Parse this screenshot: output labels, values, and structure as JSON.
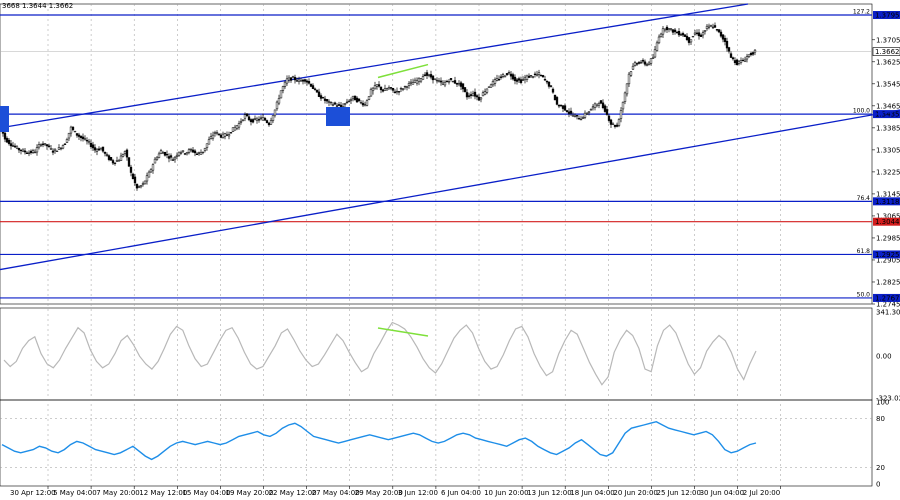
{
  "header": {
    "ohlc_text": "3668 1.3644 1.3662"
  },
  "colors": {
    "candle": "#000000",
    "channel": "#0a1fc8",
    "level": "#0a1fc8",
    "level_red": "#d21e1e",
    "divergence": "#7ee03a",
    "cci_line": "#b8b8b8",
    "rsi_line": "#1e8ee8",
    "grid": "#9a9a9a",
    "marker": "#1c4fd8"
  },
  "chart_data": [
    {
      "type": "candlestick",
      "series_name": "",
      "price_scale": {
        "ticks": [
          "1.3705",
          "1.3625",
          "1.3545",
          "1.3465",
          "1.3385",
          "1.3305",
          "1.3225",
          "1.3145",
          "1.3065",
          "1.2985",
          "1.2905",
          "1.2825",
          "1.2745"
        ],
        "range": [
          1.2745,
          1.3835
        ]
      },
      "current_price": "1.3662",
      "fib_levels": [
        {
          "label": "127.2",
          "price": "1.3795",
          "color": "blue"
        },
        {
          "label": "100.0",
          "price": "1.3435",
          "color": "blue"
        },
        {
          "label": "76.4",
          "price": "1.3118",
          "color": "blue"
        },
        {
          "label": "",
          "price": "1.3044",
          "color": "red"
        },
        {
          "label": "61.8",
          "price": "1.2925",
          "color": "blue"
        },
        {
          "label": "50.0",
          "price": "1.2767",
          "color": "blue"
        }
      ],
      "x_labels": [
        "30 Apr 12:00",
        "5 May 04:00",
        "7 May 20:00",
        "12 May 12:00",
        "15 May 04:00",
        "19 May 20:00",
        "22 May 12:00",
        "27 May 04:00",
        "29 May 20:00",
        "3 Jun 12:00",
        "6 Jun 04:00",
        "10 Jun 20:00",
        "13 Jun 12:00",
        "18 Jun 04:00",
        "20 Jun 20:00",
        "25 Jun 12:00",
        "30 Jun 04:00",
        "2 Jul 20:00"
      ],
      "close_path": [
        [
          0,
          1.3405
        ],
        [
          6,
          1.3345
        ],
        [
          12,
          1.3325
        ],
        [
          18,
          1.331
        ],
        [
          24,
          1.33
        ],
        [
          30,
          1.3295
        ],
        [
          36,
          1.33
        ],
        [
          42,
          1.333
        ],
        [
          48,
          1.332
        ],
        [
          54,
          1.33
        ],
        [
          60,
          1.331
        ],
        [
          66,
          1.333
        ],
        [
          72,
          1.3385
        ],
        [
          78,
          1.336
        ],
        [
          84,
          1.3345
        ],
        [
          90,
          1.333
        ],
        [
          96,
          1.3305
        ],
        [
          102,
          1.331
        ],
        [
          108,
          1.328
        ],
        [
          114,
          1.326
        ],
        [
          120,
          1.327
        ],
        [
          126,
          1.33
        ],
        [
          132,
          1.322
        ],
        [
          138,
          1.3165
        ],
        [
          144,
          1.318
        ],
        [
          150,
          1.322
        ],
        [
          156,
          1.327
        ],
        [
          162,
          1.33
        ],
        [
          168,
          1.3285
        ],
        [
          174,
          1.327
        ],
        [
          180,
          1.33
        ],
        [
          186,
          1.3295
        ],
        [
          192,
          1.3305
        ],
        [
          198,
          1.329
        ],
        [
          204,
          1.33
        ],
        [
          210,
          1.334
        ],
        [
          216,
          1.337
        ],
        [
          222,
          1.3355
        ],
        [
          228,
          1.336
        ],
        [
          234,
          1.338
        ],
        [
          240,
          1.34
        ],
        [
          246,
          1.343
        ],
        [
          252,
          1.341
        ],
        [
          258,
          1.3415
        ],
        [
          264,
          1.342
        ],
        [
          270,
          1.34
        ],
        [
          276,
          1.345
        ],
        [
          282,
          1.352
        ],
        [
          288,
          1.356
        ],
        [
          294,
          1.3565
        ],
        [
          300,
          1.3555
        ],
        [
          306,
          1.356
        ],
        [
          312,
          1.354
        ],
        [
          318,
          1.351
        ],
        [
          324,
          1.349
        ],
        [
          330,
          1.3475
        ],
        [
          336,
          1.347
        ],
        [
          342,
          1.346
        ],
        [
          348,
          1.348
        ],
        [
          354,
          1.3495
        ],
        [
          360,
          1.348
        ],
        [
          366,
          1.347
        ],
        [
          372,
          1.352
        ],
        [
          378,
          1.354
        ],
        [
          384,
          1.352
        ],
        [
          390,
          1.353
        ],
        [
          396,
          1.3515
        ],
        [
          402,
          1.3525
        ],
        [
          408,
          1.354
        ],
        [
          414,
          1.355
        ],
        [
          420,
          1.356
        ],
        [
          426,
          1.358
        ],
        [
          432,
          1.357
        ],
        [
          438,
          1.3555
        ],
        [
          444,
          1.3545
        ],
        [
          450,
          1.356
        ],
        [
          456,
          1.355
        ],
        [
          462,
          1.354
        ],
        [
          468,
          1.35
        ],
        [
          474,
          1.351
        ],
        [
          480,
          1.349
        ],
        [
          486,
          1.352
        ],
        [
          492,
          1.3545
        ],
        [
          498,
          1.356
        ],
        [
          504,
          1.3575
        ],
        [
          510,
          1.3585
        ],
        [
          516,
          1.356
        ],
        [
          522,
          1.3555
        ],
        [
          528,
          1.357
        ],
        [
          534,
          1.3575
        ],
        [
          540,
          1.358
        ],
        [
          546,
          1.356
        ],
        [
          552,
          1.353
        ],
        [
          558,
          1.347
        ],
        [
          564,
          1.346
        ],
        [
          570,
          1.344
        ],
        [
          576,
          1.3425
        ],
        [
          582,
          1.342
        ],
        [
          588,
          1.344
        ],
        [
          594,
          1.346
        ],
        [
          600,
          1.348
        ],
        [
          606,
          1.345
        ],
        [
          612,
          1.34
        ],
        [
          618,
          1.339
        ],
        [
          624,
          1.348
        ],
        [
          630,
          1.358
        ],
        [
          636,
          1.362
        ],
        [
          642,
          1.3625
        ],
        [
          648,
          1.3615
        ],
        [
          654,
          1.364
        ],
        [
          660,
          1.372
        ],
        [
          666,
          1.375
        ],
        [
          672,
          1.374
        ],
        [
          678,
          1.373
        ],
        [
          684,
          1.3725
        ],
        [
          690,
          1.37
        ],
        [
          696,
          1.373
        ],
        [
          702,
          1.372
        ],
        [
          708,
          1.375
        ],
        [
          714,
          1.3755
        ],
        [
          720,
          1.373
        ],
        [
          726,
          1.37
        ],
        [
          732,
          1.364
        ],
        [
          738,
          1.362
        ],
        [
          744,
          1.363
        ],
        [
          750,
          1.365
        ],
        [
          756,
          1.3662
        ]
      ],
      "channel": {
        "upper": [
          [
            0,
            1.3385
          ],
          [
            748,
            1.3835
          ]
        ],
        "lower": [
          [
            0,
            1.287
          ],
          [
            900,
            1.345
          ]
        ]
      },
      "divergence_segment": [
        [
          378,
          1.3568
        ],
        [
          428,
          1.3615
        ]
      ]
    },
    {
      "type": "line",
      "series_name": "",
      "axis_ticks": [
        "341.3079",
        "0.00",
        "-323.021"
      ],
      "range": [
        -323.021,
        341.3079
      ],
      "values": [
        -30,
        -80,
        -40,
        60,
        120,
        150,
        20,
        -60,
        -90,
        -30,
        60,
        140,
        220,
        180,
        50,
        -40,
        -90,
        -60,
        20,
        120,
        160,
        90,
        0,
        -60,
        -100,
        -40,
        60,
        170,
        230,
        200,
        80,
        -20,
        -80,
        -60,
        30,
        120,
        200,
        220,
        140,
        30,
        -60,
        -100,
        -80,
        0,
        80,
        180,
        210,
        130,
        40,
        -30,
        -80,
        -60,
        10,
        90,
        170,
        120,
        30,
        -50,
        -120,
        -90,
        20,
        100,
        190,
        260,
        240,
        210,
        150,
        70,
        -20,
        -90,
        -130,
        -60,
        40,
        140,
        200,
        240,
        180,
        60,
        -40,
        -100,
        -80,
        10,
        120,
        210,
        230,
        150,
        20,
        -80,
        -150,
        -120,
        20,
        120,
        200,
        170,
        60,
        -50,
        -140,
        -220,
        -160,
        30,
        130,
        200,
        160,
        60,
        -100,
        -120,
        80,
        200,
        240,
        180,
        60,
        -60,
        -140,
        -90,
        40,
        110,
        160,
        120,
        30,
        -100,
        -180,
        -60,
        40
      ]
    },
    {
      "type": "line",
      "series_name": "",
      "axis_ticks": [
        "100",
        "80",
        "20",
        "0"
      ],
      "range": [
        0,
        100
      ],
      "values": [
        48,
        44,
        40,
        38,
        40,
        42,
        46,
        44,
        40,
        38,
        42,
        48,
        52,
        50,
        46,
        42,
        40,
        38,
        36,
        38,
        42,
        46,
        40,
        34,
        30,
        34,
        40,
        46,
        50,
        52,
        50,
        48,
        50,
        52,
        50,
        48,
        50,
        54,
        58,
        60,
        62,
        64,
        60,
        58,
        62,
        68,
        72,
        74,
        70,
        64,
        58,
        56,
        54,
        52,
        50,
        52,
        54,
        56,
        58,
        60,
        58,
        56,
        54,
        56,
        58,
        60,
        62,
        60,
        56,
        52,
        50,
        52,
        56,
        60,
        62,
        60,
        56,
        54,
        52,
        50,
        48,
        46,
        50,
        54,
        56,
        52,
        46,
        42,
        38,
        36,
        40,
        44,
        50,
        54,
        48,
        42,
        36,
        34,
        38,
        50,
        62,
        68,
        70,
        72,
        74,
        76,
        72,
        68,
        66,
        64,
        62,
        60,
        62,
        64,
        60,
        52,
        42,
        38,
        40,
        44,
        48,
        50
      ]
    }
  ]
}
